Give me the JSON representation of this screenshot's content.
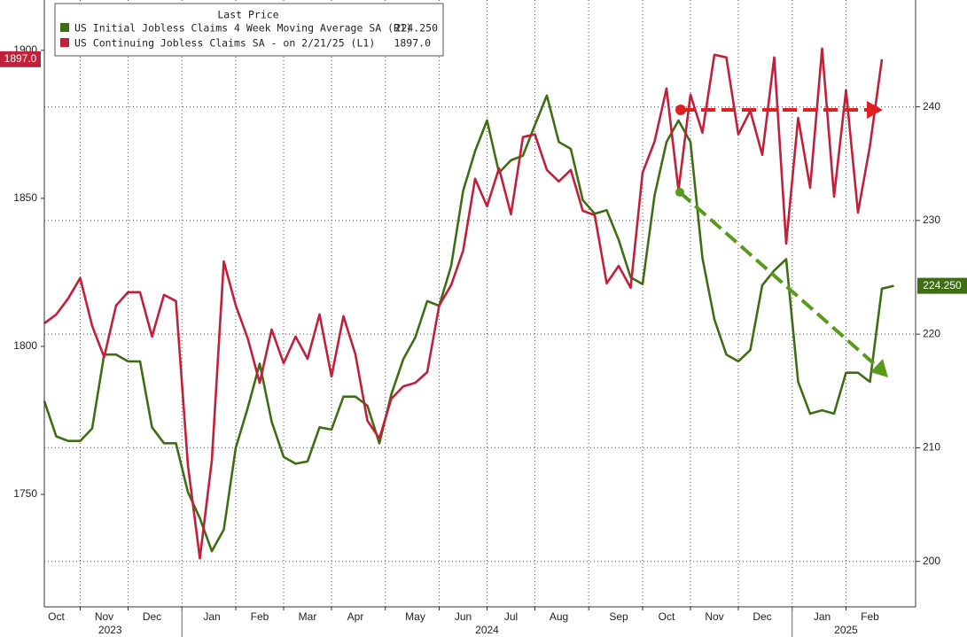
{
  "chart_data": {
    "type": "line",
    "legend_title": "Last Price",
    "categories": [
      null,
      "Oct",
      null,
      null,
      null,
      "Nov",
      null,
      null,
      null,
      "Dec",
      null,
      null,
      null,
      null,
      "Jan",
      null,
      null,
      null,
      "Feb",
      null,
      null,
      null,
      "Mar",
      null,
      null,
      null,
      "Apr",
      null,
      null,
      null,
      null,
      "May",
      null,
      null,
      null,
      "Jun",
      null,
      null,
      null,
      "Jul",
      null,
      null,
      null,
      "Aug",
      null,
      null,
      null,
      null,
      "Sep",
      null,
      null,
      null,
      "Oct",
      null,
      null,
      null,
      "Nov",
      null,
      null,
      null,
      "Dec",
      null,
      null,
      null,
      null,
      "Jan",
      null,
      null,
      null,
      "Feb",
      null,
      null
    ],
    "x_groups": [
      {
        "label": "2023",
        "size": 12
      },
      {
        "label": "2024",
        "size": 51
      },
      {
        "label": "2025",
        "size": 9
      }
    ],
    "series": [
      {
        "name": "US Initial Jobless Claims 4 Week Moving Average SA  (R1)",
        "color": "#3f6d14",
        "axis": "y2",
        "last_label": "224.250",
        "values": [
          214.1,
          211.0,
          210.6,
          210.6,
          211.7,
          218.2,
          218.2,
          217.6,
          217.6,
          211.8,
          210.4,
          210.4,
          206.1,
          203.8,
          200.9,
          202.8,
          210.0,
          213.5,
          217.4,
          212.3,
          209.2,
          208.6,
          208.8,
          211.8,
          211.6,
          214.5,
          214.5,
          213.7,
          210.4,
          214.7,
          217.8,
          219.7,
          222.9,
          222.5,
          226.0,
          232.6,
          236.1,
          238.8,
          234.2,
          235.3,
          235.7,
          238.4,
          241.0,
          236.9,
          236.3,
          231.8,
          230.6,
          230.9,
          228.3,
          225.0,
          224.4,
          232.2,
          236.9,
          238.8,
          236.9,
          226.7,
          221.3,
          218.2,
          217.6,
          218.6,
          224.3,
          225.6,
          226.6,
          215.8,
          213.0,
          213.3,
          213.0,
          216.6,
          216.6,
          215.8,
          224.0,
          224.25
        ]
      },
      {
        "name": "US Continuing Jobless Claims SA -  on 2/21/25  (L1)",
        "color": "#c0203a",
        "axis": "y",
        "last_label": "1897.0",
        "values": [
          1807.8,
          1810.8,
          1816.2,
          1823.1,
          1806.9,
          1796.4,
          1813.8,
          1818.3,
          1818.3,
          1803.3,
          1817.4,
          1815.3,
          1759.9,
          1728.4,
          1761.4,
          1828.7,
          1813.8,
          1802.7,
          1787.7,
          1805.7,
          1794.3,
          1803.3,
          1795.8,
          1810.8,
          1789.8,
          1810.2,
          1797.3,
          1774.9,
          1768.9,
          1782.3,
          1786.5,
          1787.7,
          1791.3,
          1813.8,
          1820.7,
          1832.3,
          1856.6,
          1847.3,
          1860.2,
          1844.6,
          1870.7,
          1871.6,
          1859.6,
          1855.7,
          1859.6,
          1845.8,
          1844.3,
          1821.3,
          1827.2,
          1819.8,
          1858.7,
          1869.2,
          1887.1,
          1852.7,
          1885.0,
          1872.2,
          1898.5,
          1897.6,
          1871.6,
          1879.6,
          1864.7,
          1897.6,
          1834.7,
          1877.2,
          1853.6,
          1900.6,
          1850.6,
          1886.5,
          1845.2,
          1867.7,
          1897.0,
          null
        ]
      }
    ],
    "ylim": [
      1712,
      1917
    ],
    "yticks": [
      1750,
      1800,
      1850,
      1900
    ],
    "y2lim": [
      196,
      249.4
    ],
    "y2ticks": [
      200,
      210,
      220,
      230,
      240
    ],
    "grid": "y2"
  }
}
